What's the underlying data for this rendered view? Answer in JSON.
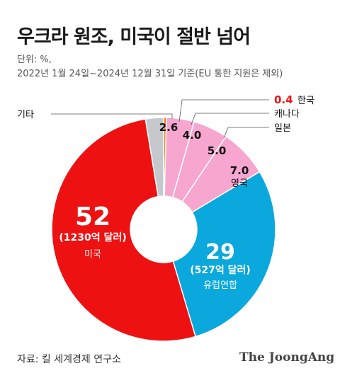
{
  "title": "우크라 원조, 미국이 절반 넘어",
  "unit_label": "단위: %,",
  "period_label": "2022년 1월 24일~2024년 12월 31일 기준(EU 통한 지원은 제외)",
  "source": "자료: 킬 세계경제 연구소",
  "brand": "The JoongAng",
  "chart_data": {
    "type": "donut",
    "title": "우크라 원조, 미국이 절반 넘어",
    "unit": "%",
    "slices": [
      {
        "key": "us",
        "label": "미국",
        "value": 52,
        "value_text": "52",
        "sub": "(1230억 달러)",
        "color": "#ee1111"
      },
      {
        "key": "eu",
        "label": "유럽연합",
        "value": 29,
        "value_text": "29",
        "sub": "(527억 달러)",
        "color": "#0aa8dc"
      },
      {
        "key": "uk",
        "label": "영국",
        "value": 7.0,
        "value_text": "7.0",
        "color": "#f7a6cf"
      },
      {
        "key": "jp",
        "label": "일본",
        "value": 5.0,
        "value_text": "5.0",
        "color": "#f7a6cf"
      },
      {
        "key": "ca",
        "label": "캐나다",
        "value": 4.0,
        "value_text": "4.0",
        "color": "#f7a6cf"
      },
      {
        "key": "kr",
        "label": "한국",
        "value": 0.4,
        "value_text": "0.4",
        "color": "#ff7a00",
        "value_color": "#ee1111"
      },
      {
        "key": "etc",
        "label": "기타",
        "value": 2.6,
        "value_text": "2.6",
        "color": "#c5c9ce"
      }
    ]
  }
}
